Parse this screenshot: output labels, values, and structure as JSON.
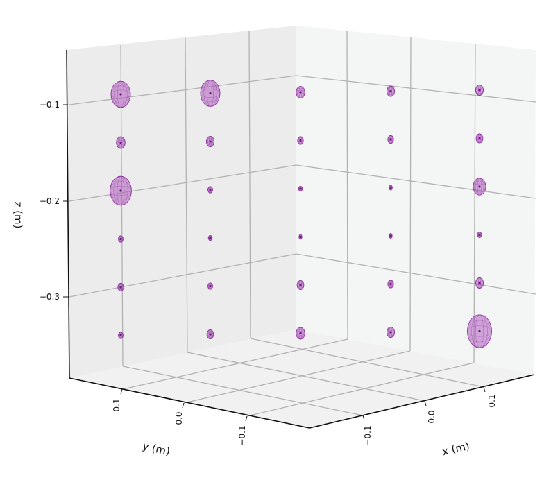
{
  "chart_data": {
    "type": "scatter3d",
    "marker": "ellipsoid",
    "xlabel": "x (m)",
    "ylabel": "y (m)",
    "zlabel": "z (m)",
    "x_ticks": [
      "−0.1",
      "0.0",
      "0.1"
    ],
    "y_ticks": [
      "0.1",
      "0.0",
      "−0.1"
    ],
    "z_ticks": [
      "−0.1",
      "−0.2",
      "−0.3"
    ],
    "grid": true,
    "colors": {
      "fill": "#b05cc0",
      "stroke": "#8a2a9c",
      "center": "#6a1a7a"
    },
    "columns": [
      {
        "x": -0.1,
        "y": 0.1
      },
      {
        "x": -0.05,
        "y": 0.05
      },
      {
        "x": 0.0,
        "y": 0.0
      },
      {
        "x": 0.05,
        "y": -0.05
      },
      {
        "x": 0.1,
        "y": -0.1
      }
    ],
    "levels": [
      -0.1,
      -0.15,
      -0.2,
      -0.25,
      -0.3,
      -0.35
    ],
    "sizes": [
      [
        1.0,
        0.45,
        1.1,
        0.25,
        0.3,
        0.25
      ],
      [
        1.0,
        0.4,
        0.25,
        0.2,
        0.25,
        0.35
      ],
      [
        0.45,
        0.3,
        0.2,
        0.12,
        0.35,
        0.45
      ],
      [
        0.4,
        0.3,
        0.17,
        0.14,
        0.3,
        0.4
      ],
      [
        0.4,
        0.35,
        0.65,
        0.22,
        0.4,
        1.25
      ]
    ]
  }
}
